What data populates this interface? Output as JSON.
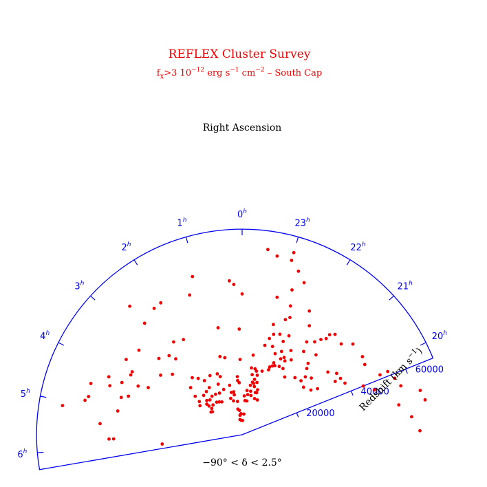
{
  "title": "REFLEX Cluster Survey",
  "subtitle": {
    "part1": "f",
    "sub1": "x",
    "part2": ">3 10",
    "sup1": "−12",
    "part3": " erg s",
    "sup2": "−1",
    "part4": " cm",
    "sup3": "−2",
    "part5": " – South Cap"
  },
  "colors": {
    "points": "#ee0000",
    "axes": "#0000ee",
    "title": "#ee0000"
  },
  "chart_data": {
    "type": "scatter",
    "projection": "polar wedge (right ascension vs redshift)",
    "angle_label": "Right Ascension",
    "radius_label": "Redshift (km s",
    "radius_label_sup": "−1",
    "radius_label_end": ")",
    "declination_note": "−90° < δ < 2.5°",
    "ra_range_hours": [
      6.3,
      19.7
    ],
    "radius_range": [
      0,
      70000
    ],
    "ra_ticks": [
      {
        "h": 6,
        "label": "6"
      },
      {
        "h": 5,
        "label": "5"
      },
      {
        "h": 4,
        "label": "4"
      },
      {
        "h": 3,
        "label": "3"
      },
      {
        "h": 2,
        "label": "2"
      },
      {
        "h": 1,
        "label": "1"
      },
      {
        "h": 0,
        "label": "0"
      },
      {
        "h": 23,
        "label": "23"
      },
      {
        "h": 22,
        "label": "22"
      },
      {
        "h": 21,
        "label": "21"
      },
      {
        "h": 20,
        "label": "20"
      }
    ],
    "hour_suffix": "h",
    "radius_ticks": [
      {
        "v": 20000,
        "label": "20000"
      },
      {
        "v": 40000,
        "label": "40000"
      },
      {
        "v": 60000,
        "label": "60000"
      }
    ],
    "points": [
      [
        6.1,
        27390
      ],
      [
        5.8,
        43760
      ],
      [
        5.8,
        45330
      ],
      [
        5.4,
        48500
      ],
      [
        5.1,
        61940
      ],
      [
        4.8,
        53890
      ],
      [
        5.0,
        43100
      ],
      [
        4.9,
        54760
      ],
      [
        4.6,
        43050
      ],
      [
        4.5,
        40880
      ],
      [
        4.2,
        44630
      ],
      [
        4.1,
        39090
      ],
      [
        4.4,
        48030
      ],
      [
        4.2,
        49480
      ],
      [
        4.5,
        54380
      ],
      [
        4.0,
        35760
      ],
      [
        3.9,
        43020
      ],
      [
        3.8,
        43130
      ],
      [
        3.6,
        47080
      ],
      [
        3.2,
        45400
      ],
      [
        3.4,
        34370
      ],
      [
        3.0,
        38460
      ],
      [
        3.1,
        31390
      ],
      [
        2.6,
        50430
      ],
      [
        2.6,
        58130
      ],
      [
        2.7,
        36640
      ],
      [
        2.6,
        34310
      ],
      [
        2.3,
        39270
      ],
      [
        2.2,
        52430
      ],
      [
        2.0,
        38060
      ],
      [
        2.0,
        52760
      ],
      [
        1.3,
        50810
      ],
      [
        1.1,
        56440
      ],
      [
        0.3,
        52570
      ],
      [
        0.2,
        51260
      ],
      [
        0.1,
        35980
      ],
      [
        -0.0,
        47940
      ],
      [
        0.1,
        25620
      ],
      [
        0.2,
        17730
      ],
      [
        0.3,
        19830
      ],
      [
        0.8,
        26890
      ],
      [
        2.2,
        22440
      ],
      [
        2.4,
        24310
      ],
      [
        2.6,
        25790
      ],
      [
        3.3,
        12790
      ],
      [
        3.4,
        13120
      ],
      [
        3.1,
        15930
      ],
      [
        3.3,
        18430
      ],
      [
        3.2,
        20650
      ],
      [
        3.5,
        17420
      ],
      [
        3.1,
        14910
      ],
      [
        2.9,
        16750
      ],
      [
        2.7,
        16130
      ],
      [
        2.4,
        16660
      ],
      [
        2.8,
        14170
      ],
      [
        3.1,
        13670
      ],
      [
        2.8,
        18740
      ],
      [
        3.0,
        23770
      ],
      [
        2.5,
        19050
      ],
      [
        2.1,
        16460
      ],
      [
        1.8,
        22890
      ],
      [
        2.2,
        19560
      ],
      [
        2.4,
        14070
      ],
      [
        1.4,
        22380
      ],
      [
        1.0,
        27650
      ],
      [
        0.8,
        37330
      ],
      [
        1.4,
        16650
      ],
      [
        2.0,
        13120
      ],
      [
        2.2,
        13620
      ],
      [
        1.6,
        19050
      ],
      [
        1.3,
        21150
      ],
      [
        1.8,
        16120
      ],
      [
        0.7,
        14880
      ],
      [
        1.1,
        12950
      ],
      [
        0.9,
        11900
      ],
      [
        0.9,
        17340
      ],
      [
        0.3,
        18500
      ],
      [
        0.9,
        14850
      ],
      [
        0.7,
        13850
      ],
      [
        0.5,
        11440
      ],
      [
        0.6,
        8840
      ],
      [
        0.4,
        8340
      ],
      [
        0.5,
        5210
      ],
      [
        0.2,
        4910
      ],
      [
        -0.1,
        4860
      ],
      [
        0.4,
        6640
      ],
      [
        -0.3,
        7040
      ],
      [
        0.2,
        7180
      ],
      [
        -0.5,
        11620
      ],
      [
        -0.3,
        11660
      ],
      [
        -0.2,
        13240
      ],
      [
        -0.5,
        13780
      ],
      [
        -0.4,
        15140
      ],
      [
        -0.6,
        17040
      ],
      [
        -0.8,
        17890
      ],
      [
        -0.9,
        16900
      ],
      [
        -1.2,
        16170
      ],
      [
        -1.0,
        18490
      ],
      [
        -1.1,
        15050
      ],
      [
        -1.2,
        15120
      ],
      [
        -1.5,
        12930
      ],
      [
        -1.2,
        13000
      ],
      [
        -0.7,
        15080
      ],
      [
        -0.8,
        13690
      ],
      [
        -0.7,
        22870
      ],
      [
        -0.5,
        22960
      ],
      [
        -0.7,
        18220
      ],
      [
        -0.8,
        19330
      ],
      [
        -0.6,
        20740
      ],
      [
        -0.9,
        20910
      ],
      [
        -1.4,
        29800
      ],
      [
        -1.2,
        31780
      ],
      [
        -0.9,
        31390
      ],
      [
        -0.5,
        27360
      ],
      [
        -0.8,
        22210
      ],
      [
        -1.1,
        22690
      ],
      [
        -1.4,
        23840
      ],
      [
        -1.4,
        24900
      ],
      [
        -1.5,
        25560
      ],
      [
        -1.6,
        26000
      ],
      [
        -1.5,
        26760
      ],
      [
        -1.8,
        26460
      ],
      [
        -2.0,
        26480
      ],
      [
        -2.3,
        24420
      ],
      [
        -2.7,
        26490
      ],
      [
        -3.0,
        29170
      ],
      [
        -3.2,
        30450
      ],
      [
        -2.7,
        33070
      ],
      [
        -2.3,
        35250
      ],
      [
        -2.4,
        40130
      ],
      [
        -2.5,
        42080
      ],
      [
        -2.6,
        43460
      ],
      [
        -2.6,
        45250
      ],
      [
        -2.7,
        46550
      ],
      [
        -3.0,
        45770
      ],
      [
        -3.2,
        48730
      ],
      [
        -3.6,
        48840
      ],
      [
        -3.8,
        48120
      ],
      [
        -4.2,
        51180
      ],
      [
        -4.2,
        54050
      ],
      [
        -4.4,
        55420
      ],
      [
        -4.6,
        56530
      ],
      [
        -4.8,
        62470
      ],
      [
        -5.0,
        63410
      ],
      [
        -5.6,
        60560
      ],
      [
        -5.3,
        58030
      ],
      [
        -5.0,
        54300
      ],
      [
        -4.5,
        47570
      ],
      [
        -4.3,
        44480
      ],
      [
        -4.0,
        39180
      ],
      [
        -3.8,
        38590
      ],
      [
        -3.6,
        38360
      ],
      [
        -3.8,
        36520
      ],
      [
        -3.4,
        36160
      ],
      [
        -3.7,
        30070
      ],
      [
        -3.6,
        27920
      ],
      [
        -3.3,
        26440
      ],
      [
        -3.0,
        27190
      ],
      [
        -2.8,
        31500
      ],
      [
        -2.7,
        37040
      ],
      [
        -2.2,
        38490
      ],
      [
        -2.0,
        43580
      ],
      [
        -1.8,
        47930
      ],
      [
        -1.9,
        33120
      ],
      [
        -1.7,
        28970
      ],
      [
        -1.9,
        29050
      ],
      [
        -1.8,
        29940
      ],
      [
        -2.1,
        30460
      ],
      [
        -1.6,
        31370
      ],
      [
        -1.6,
        37270
      ],
      [
        -1.5,
        34700
      ],
      [
        -1.1,
        35830
      ],
      [
        -1.0,
        34050
      ],
      [
        -1.3,
        36560
      ],
      [
        -1.0,
        38990
      ],
      [
        -1.3,
        41850
      ],
      [
        -1.4,
        43100
      ],
      [
        -1.3,
        46840
      ],
      [
        -0.9,
        48290
      ],
      [
        -1.2,
        52140
      ],
      [
        -1.4,
        55890
      ],
      [
        -1.2,
        58880
      ],
      [
        -1.0,
        61700
      ],
      [
        -0.7,
        61980
      ],
      [
        -0.5,
        63650
      ],
      [
        -1.0,
        64440
      ]
    ]
  }
}
